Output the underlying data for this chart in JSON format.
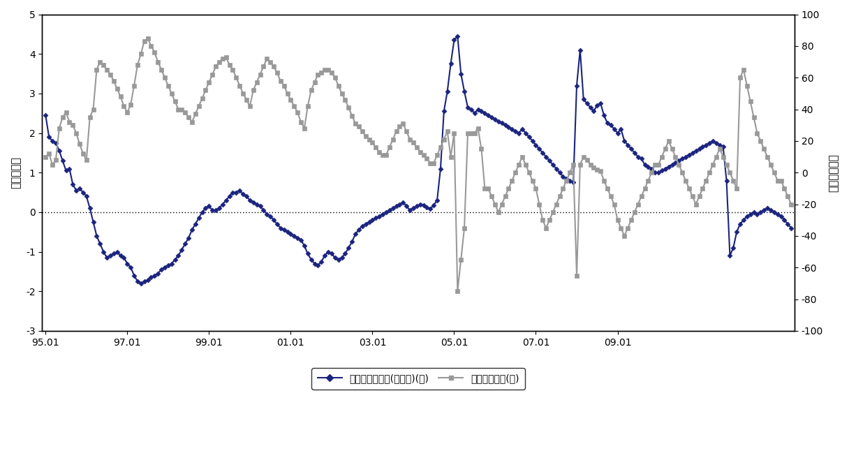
{
  "left_ylim": [
    -3,
    5
  ],
  "right_ylim": [
    -100,
    100
  ],
  "left_yticks": [
    -3,
    -2,
    -1,
    0,
    1,
    2,
    3,
    4,
    5
  ],
  "right_yticks": [
    -100,
    -80,
    -60,
    -40,
    -20,
    0,
    20,
    40,
    60,
    80,
    100
  ],
  "xtick_labels": [
    "95.01",
    "97.01",
    "99.01",
    "01.01",
    "03.01",
    "05.01",
    "07.01",
    "09.01"
  ],
  "xtick_positions": [
    0,
    24,
    48,
    72,
    96,
    120,
    144,
    168
  ],
  "left_ylabel": "표준화가격",
  "right_ylabel": "목표재고일수",
  "legend_label1": "전기동선물가격(표준화)(좌)",
  "legend_label2": "목표재고수준(우)",
  "line1_color": "#1a237e",
  "line2_color": "#999999",
  "background_color": "#ffffff",
  "zero_line_color": "#000000",
  "border_color": "#000000",
  "blue_series": [
    2.45,
    1.9,
    1.8,
    1.75,
    1.55,
    1.3,
    1.05,
    1.1,
    0.7,
    0.55,
    0.6,
    0.5,
    0.4,
    0.1,
    -0.25,
    -0.6,
    -0.8,
    -1.0,
    -1.15,
    -1.1,
    -1.05,
    -1.0,
    -1.1,
    -1.15,
    -1.3,
    -1.4,
    -1.6,
    -1.75,
    -1.8,
    -1.75,
    -1.72,
    -1.65,
    -1.6,
    -1.55,
    -1.45,
    -1.4,
    -1.35,
    -1.3,
    -1.2,
    -1.1,
    -0.95,
    -0.8,
    -0.65,
    -0.45,
    -0.3,
    -0.15,
    0.0,
    0.1,
    0.15,
    0.05,
    0.05,
    0.1,
    0.2,
    0.3,
    0.4,
    0.5,
    0.5,
    0.55,
    0.45,
    0.4,
    0.3,
    0.25,
    0.2,
    0.15,
    0.05,
    -0.05,
    -0.1,
    -0.2,
    -0.3,
    -0.4,
    -0.45,
    -0.5,
    -0.55,
    -0.6,
    -0.65,
    -0.7,
    -0.85,
    -1.05,
    -1.2,
    -1.3,
    -1.35,
    -1.25,
    -1.1,
    -1.0,
    -1.05,
    -1.15,
    -1.2,
    -1.15,
    -1.05,
    -0.9,
    -0.75,
    -0.55,
    -0.45,
    -0.35,
    -0.3,
    -0.25,
    -0.2,
    -0.15,
    -0.1,
    -0.05,
    0.0,
    0.05,
    0.1,
    0.15,
    0.2,
    0.25,
    0.15,
    0.05,
    0.1,
    0.15,
    0.2,
    0.18,
    0.12,
    0.08,
    0.18,
    0.3,
    1.1,
    2.55,
    3.05,
    3.75,
    4.35,
    4.45,
    3.5,
    3.05,
    2.65,
    2.6,
    2.5,
    2.6,
    2.55,
    2.5,
    2.45,
    2.4,
    2.35,
    2.3,
    2.25,
    2.2,
    2.15,
    2.1,
    2.05,
    2.0,
    2.1,
    2.0,
    1.9,
    1.8,
    1.7,
    1.6,
    1.5,
    1.4,
    1.3,
    1.2,
    1.1,
    1.0,
    0.9,
    0.85,
    0.8,
    0.75,
    3.2,
    4.1,
    2.85,
    2.75,
    2.65,
    2.55,
    2.7,
    2.75,
    2.45,
    2.25,
    2.2,
    2.1,
    2.0,
    2.1,
    1.8,
    1.7,
    1.6,
    1.5,
    1.4,
    1.35,
    1.2,
    1.15,
    1.1,
    1.0,
    1.0,
    1.05,
    1.1,
    1.15,
    1.2,
    1.25,
    1.3,
    1.35,
    1.4,
    1.45,
    1.5,
    1.55,
    1.6,
    1.65,
    1.7,
    1.75,
    1.8,
    1.75,
    1.7,
    1.65,
    0.8,
    -1.1,
    -0.9,
    -0.5,
    -0.3,
    -0.2,
    -0.1,
    -0.05,
    0.0,
    -0.05,
    0.0,
    0.05,
    0.1,
    0.05,
    0.0,
    -0.05,
    -0.1,
    -0.2,
    -0.3,
    -0.4
  ],
  "gray_series": [
    10,
    12,
    5,
    8,
    28,
    35,
    38,
    32,
    30,
    25,
    18,
    12,
    8,
    35,
    40,
    65,
    70,
    68,
    65,
    62,
    58,
    53,
    48,
    42,
    38,
    43,
    55,
    68,
    75,
    83,
    85,
    80,
    76,
    70,
    65,
    60,
    55,
    50,
    45,
    40,
    40,
    38,
    35,
    32,
    37,
    42,
    47,
    52,
    57,
    62,
    67,
    70,
    72,
    73,
    68,
    65,
    60,
    55,
    50,
    46,
    42,
    52,
    57,
    62,
    67,
    72,
    70,
    67,
    63,
    58,
    55,
    50,
    46,
    42,
    38,
    32,
    28,
    42,
    52,
    57,
    62,
    63,
    65,
    65,
    63,
    60,
    55,
    50,
    46,
    41,
    36,
    31,
    29,
    26,
    23,
    21,
    19,
    16,
    13,
    11,
    11,
    16,
    21,
    26,
    29,
    31,
    26,
    21,
    19,
    16,
    13,
    11,
    9,
    6,
    6,
    11,
    16,
    21,
    26,
    10,
    25,
    -75,
    -55,
    -35,
    25,
    25,
    25,
    28,
    15,
    -10,
    -10,
    -15,
    -20,
    -25,
    -20,
    -15,
    -10,
    -5,
    0,
    5,
    10,
    5,
    0,
    -5,
    -10,
    -20,
    -30,
    -35,
    -30,
    -25,
    -20,
    -15,
    -10,
    -5,
    0,
    5,
    -65,
    5,
    10,
    8,
    5,
    3,
    2,
    1,
    -5,
    -10,
    -15,
    -20,
    -30,
    -35,
    -40,
    -35,
    -30,
    -25,
    -20,
    -15,
    -10,
    -5,
    0,
    5,
    5,
    10,
    15,
    20,
    15,
    10,
    5,
    0,
    -5,
    -10,
    -15,
    -20,
    -15,
    -10,
    -5,
    0,
    5,
    10,
    15,
    10,
    5,
    0,
    -5,
    -10,
    60,
    65,
    55,
    45,
    35,
    25,
    20,
    15,
    10,
    5,
    0,
    -5,
    -5,
    -10,
    -15,
    -20
  ]
}
